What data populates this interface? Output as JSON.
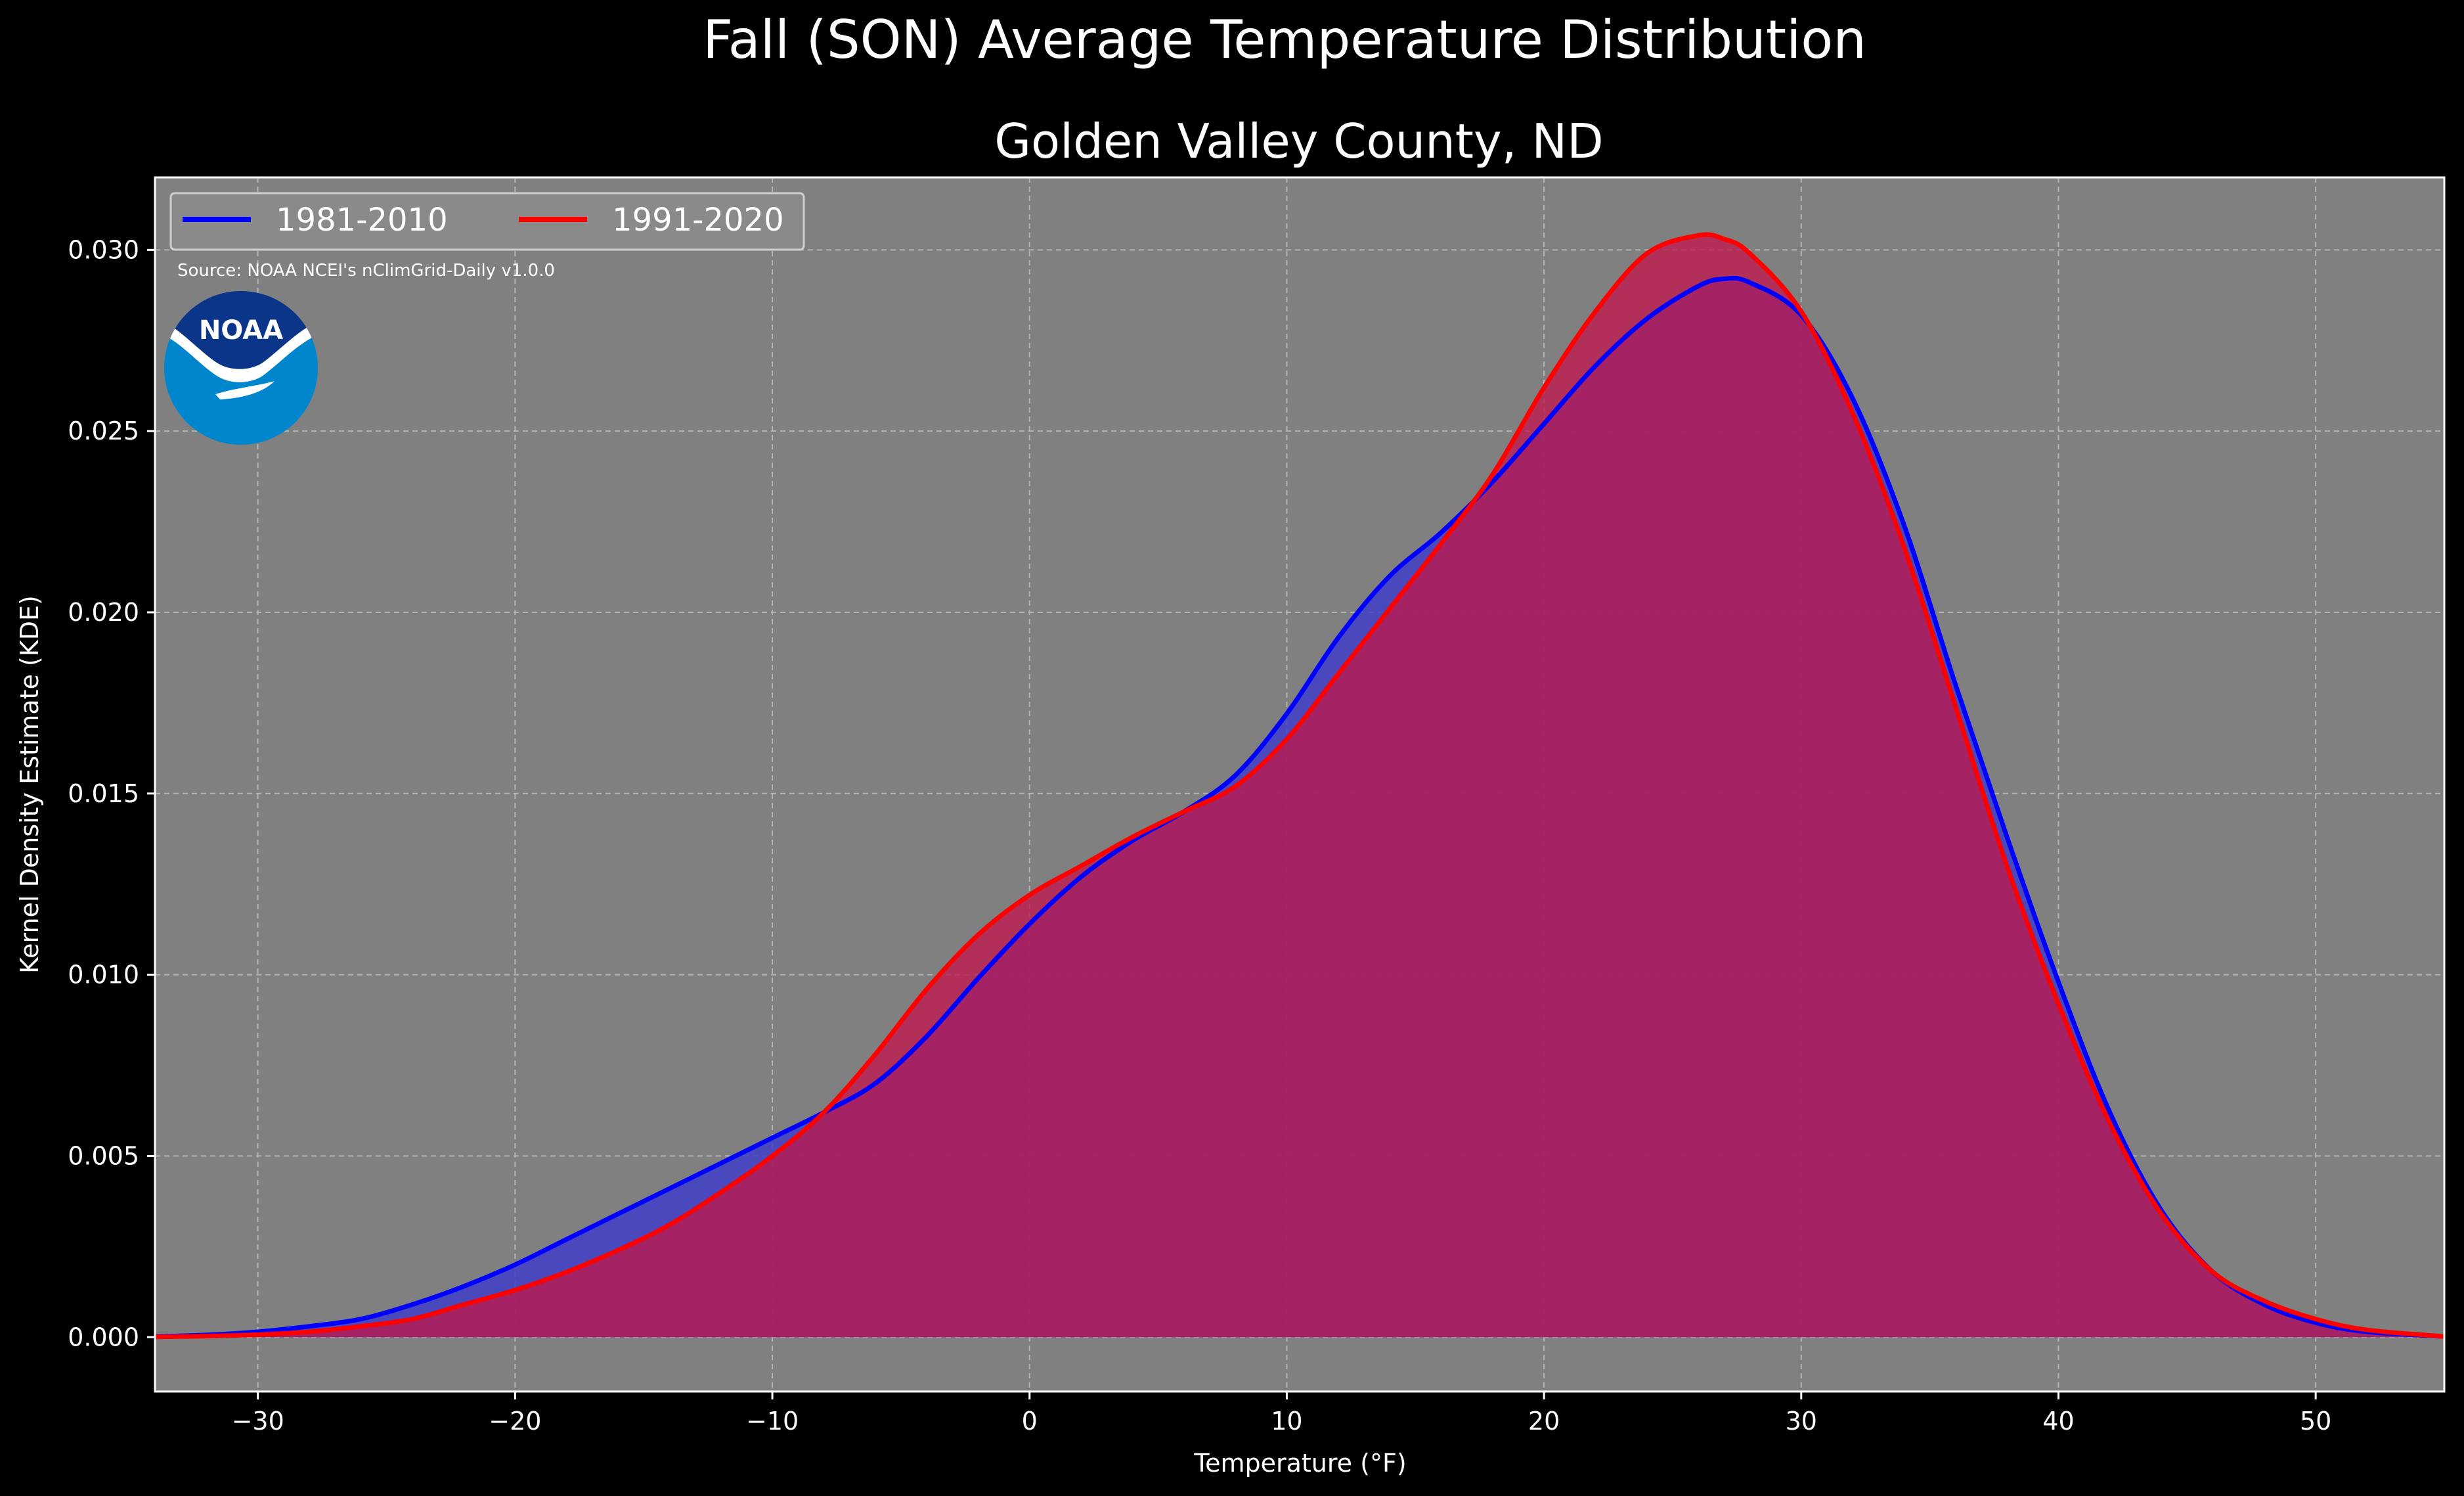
{
  "chart_data": {
    "type": "area",
    "suptitle": "Fall (SON) Average Temperature Distribution",
    "title": "Golden Valley County, ND",
    "xlabel": "Temperature (°F)",
    "ylabel": "Kernel Density Estimate (KDE)",
    "xlim": [
      -34,
      55
    ],
    "ylim": [
      -0.0015,
      0.032
    ],
    "xticks": [
      -30,
      -20,
      -10,
      0,
      10,
      20,
      30,
      40,
      50
    ],
    "xtick_labels": [
      "−30",
      "−20",
      "−10",
      "0",
      "10",
      "20",
      "30",
      "40",
      "50"
    ],
    "yticks": [
      0,
      0.005,
      0.01,
      0.015,
      0.02,
      0.025,
      0.03
    ],
    "ytick_labels": [
      "0.000",
      "0.005",
      "0.010",
      "0.015",
      "0.020",
      "0.025",
      "0.030"
    ],
    "grid": true,
    "legend_position": "top-left",
    "source": "Source: NOAA NCEI's nClimGrid-Daily v1.0.0",
    "logo_text": "NOAA",
    "colors": {
      "background": "#000000",
      "plot_bg": "#808080",
      "series_1981": "#0000ff",
      "series_1991": "#ff0000",
      "fill_1981": "#3f3fc8",
      "fill_1991": "#bd1a4e",
      "logo_dark": "#0b3589",
      "logo_light": "#0086cd"
    },
    "x": [
      -34,
      -32,
      -30,
      -28,
      -26,
      -24,
      -22,
      -20,
      -18,
      -16,
      -14,
      -12,
      -10,
      -8,
      -6,
      -4,
      -2,
      0,
      2,
      4,
      6,
      8,
      10,
      12,
      14,
      16,
      18,
      20,
      22,
      24,
      26,
      27,
      28,
      30,
      32,
      34,
      36,
      38,
      40,
      42,
      44,
      46,
      48,
      50,
      52,
      55
    ],
    "series": [
      {
        "name": "1981-2010",
        "values": [
          2e-05,
          6e-05,
          0.00015,
          0.0003,
          0.0005,
          0.0009,
          0.0014,
          0.002,
          0.0027,
          0.0034,
          0.0041,
          0.0048,
          0.0055,
          0.0062,
          0.007,
          0.0083,
          0.0099,
          0.0114,
          0.0127,
          0.0137,
          0.0145,
          0.0155,
          0.0172,
          0.0193,
          0.021,
          0.0222,
          0.0236,
          0.0252,
          0.0268,
          0.0281,
          0.029,
          0.0292,
          0.0291,
          0.0282,
          0.0259,
          0.0224,
          0.018,
          0.0138,
          0.0098,
          0.0062,
          0.0035,
          0.0018,
          0.0009,
          0.0004,
          0.00015,
          2e-05
        ]
      },
      {
        "name": "1991-2020",
        "values": [
          1e-05,
          3e-05,
          7e-05,
          0.00015,
          0.0003,
          0.0005,
          0.0009,
          0.0013,
          0.0018,
          0.0024,
          0.0031,
          0.004,
          0.005,
          0.0062,
          0.0078,
          0.0096,
          0.0111,
          0.0122,
          0.013,
          0.0138,
          0.0145,
          0.0152,
          0.0165,
          0.0183,
          0.0201,
          0.0219,
          0.0238,
          0.0262,
          0.0283,
          0.0299,
          0.0304,
          0.0303,
          0.0299,
          0.0283,
          0.0255,
          0.0218,
          0.0174,
          0.013,
          0.0092,
          0.0059,
          0.0034,
          0.0018,
          0.001,
          0.0005,
          0.0002,
          2e-05
        ]
      }
    ]
  }
}
